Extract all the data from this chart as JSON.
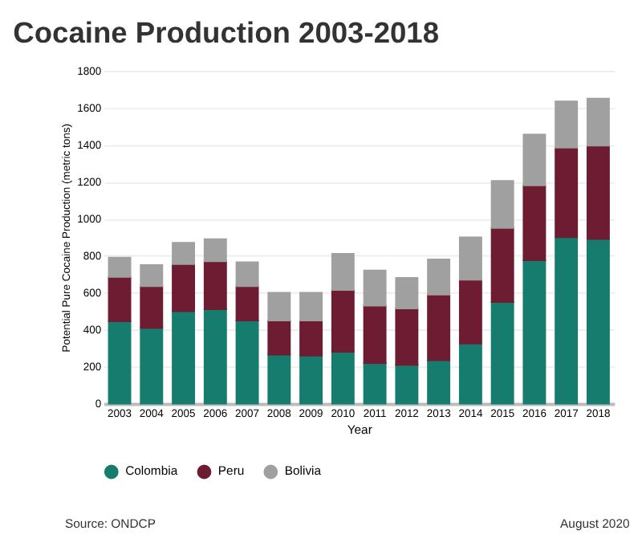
{
  "chart_data": {
    "type": "bar",
    "title": "Cocaine Production 2003-2018",
    "xlabel": "Year",
    "ylabel": "Potential Pure Cocaine Production (metric tons)",
    "categories": [
      "2003",
      "2004",
      "2005",
      "2006",
      "2007",
      "2008",
      "2009",
      "2010",
      "2011",
      "2012",
      "2013",
      "2014",
      "2015",
      "2016",
      "2017",
      "2018"
    ],
    "stacked": true,
    "series": [
      {
        "name": "Colombia",
        "color": "#167d6e",
        "values": [
          445,
          410,
          500,
          510,
          450,
          265,
          260,
          280,
          220,
          210,
          235,
          325,
          550,
          775,
          900,
          890
        ]
      },
      {
        "name": "Peru",
        "color": "#6e1c32",
        "values": [
          240,
          225,
          255,
          260,
          185,
          185,
          190,
          335,
          310,
          305,
          355,
          345,
          400,
          405,
          485,
          505
        ]
      },
      {
        "name": "Bolivia",
        "color": "#a0a0a0",
        "values": [
          105,
          115,
          115,
          120,
          130,
          150,
          150,
          195,
          190,
          165,
          190,
          230,
          255,
          275,
          250,
          255
        ]
      }
    ],
    "ylim": [
      0,
      1800
    ],
    "yticks": [
      0,
      200,
      400,
      600,
      800,
      1000,
      1200,
      1400,
      1600,
      1800
    ],
    "grid": "y",
    "legend": "bottom",
    "annotations": [
      "Source: ONDCP",
      "August 2020"
    ]
  }
}
